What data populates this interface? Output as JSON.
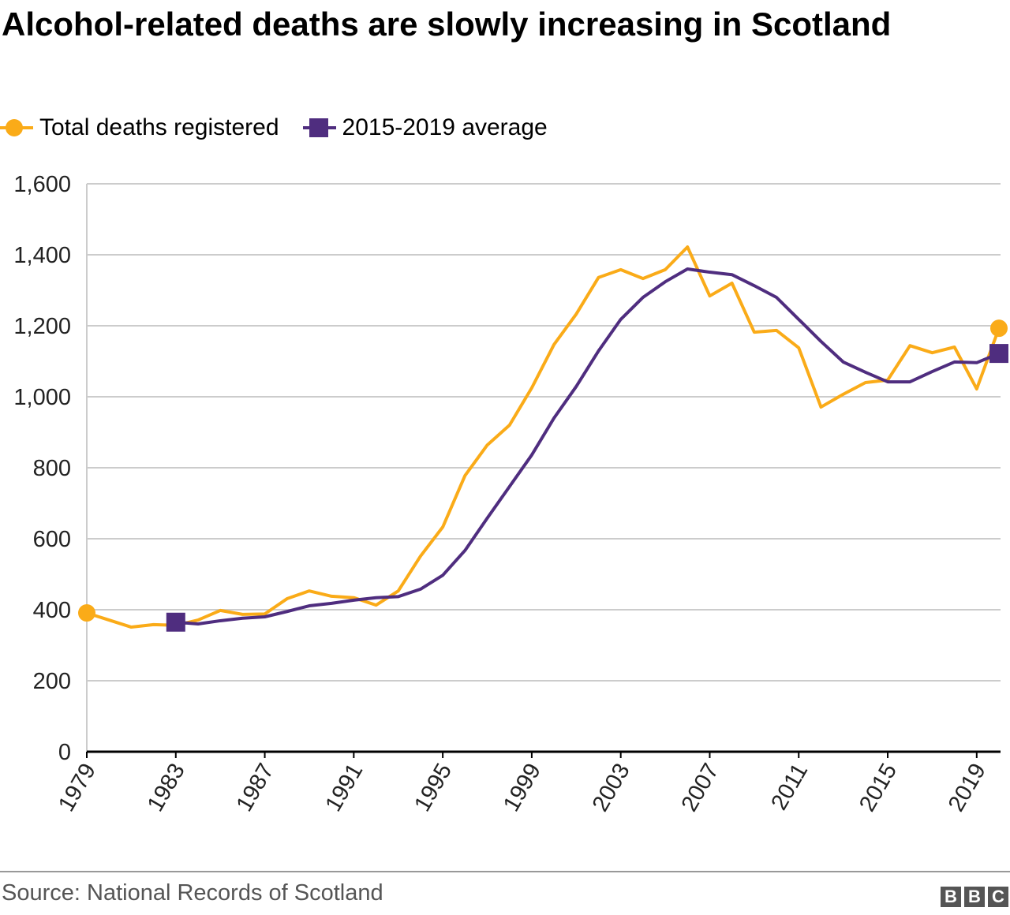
{
  "chart_data": {
    "type": "line",
    "title": "Alcohol-related deaths are slowly increasing in Scotland",
    "xlabel": "",
    "ylabel": "",
    "x": [
      1979,
      1980,
      1981,
      1982,
      1983,
      1984,
      1985,
      1986,
      1987,
      1988,
      1989,
      1990,
      1991,
      1992,
      1993,
      1994,
      1995,
      1996,
      1997,
      1998,
      1999,
      2000,
      2001,
      2002,
      2003,
      2004,
      2005,
      2006,
      2007,
      2008,
      2009,
      2010,
      2011,
      2012,
      2013,
      2014,
      2015,
      2016,
      2017,
      2018,
      2019,
      2020
    ],
    "xlim": [
      1979,
      2020
    ],
    "ylim": [
      0,
      1600
    ],
    "x_ticks": [
      "1979",
      "1983",
      "1987",
      "1991",
      "1995",
      "1999",
      "2003",
      "2007",
      "2011",
      "2015",
      "2019"
    ],
    "y_ticks": [
      "0",
      "200",
      "400",
      "600",
      "800",
      "1,000",
      "1,200",
      "1,400",
      "1,600"
    ],
    "grid": "horizontal",
    "legend": "top-left",
    "series": [
      {
        "name": "Total deaths registered",
        "color": "#FAAB18",
        "marker": "circle",
        "values": [
          391,
          371,
          351,
          358,
          356,
          371,
          398,
          387,
          388,
          431,
          453,
          438,
          434,
          413,
          453,
          551,
          633,
          778,
          864,
          920,
          1025,
          1147,
          1233,
          1336,
          1358,
          1333,
          1358,
          1422,
          1284,
          1320,
          1182,
          1187,
          1138,
          971,
          1007,
          1040,
          1047,
          1144,
          1124,
          1140,
          1022,
          1193
        ]
      },
      {
        "name": "2015-2019 average",
        "color": "#4F2D7F",
        "marker": "square",
        "values": [
          null,
          null,
          null,
          null,
          365,
          360,
          369,
          376,
          380,
          395,
          411,
          418,
          427,
          434,
          437,
          458,
          497,
          567,
          658,
          747,
          836,
          940,
          1029,
          1129,
          1218,
          1280,
          1324,
          1360,
          1351,
          1344,
          1313,
          1280,
          1218,
          1156,
          1098,
          1069,
          1042,
          1042,
          1071,
          1098,
          1096,
          1122
        ]
      }
    ]
  },
  "source": "Source: National Records of Scotland",
  "logo": "BBC"
}
